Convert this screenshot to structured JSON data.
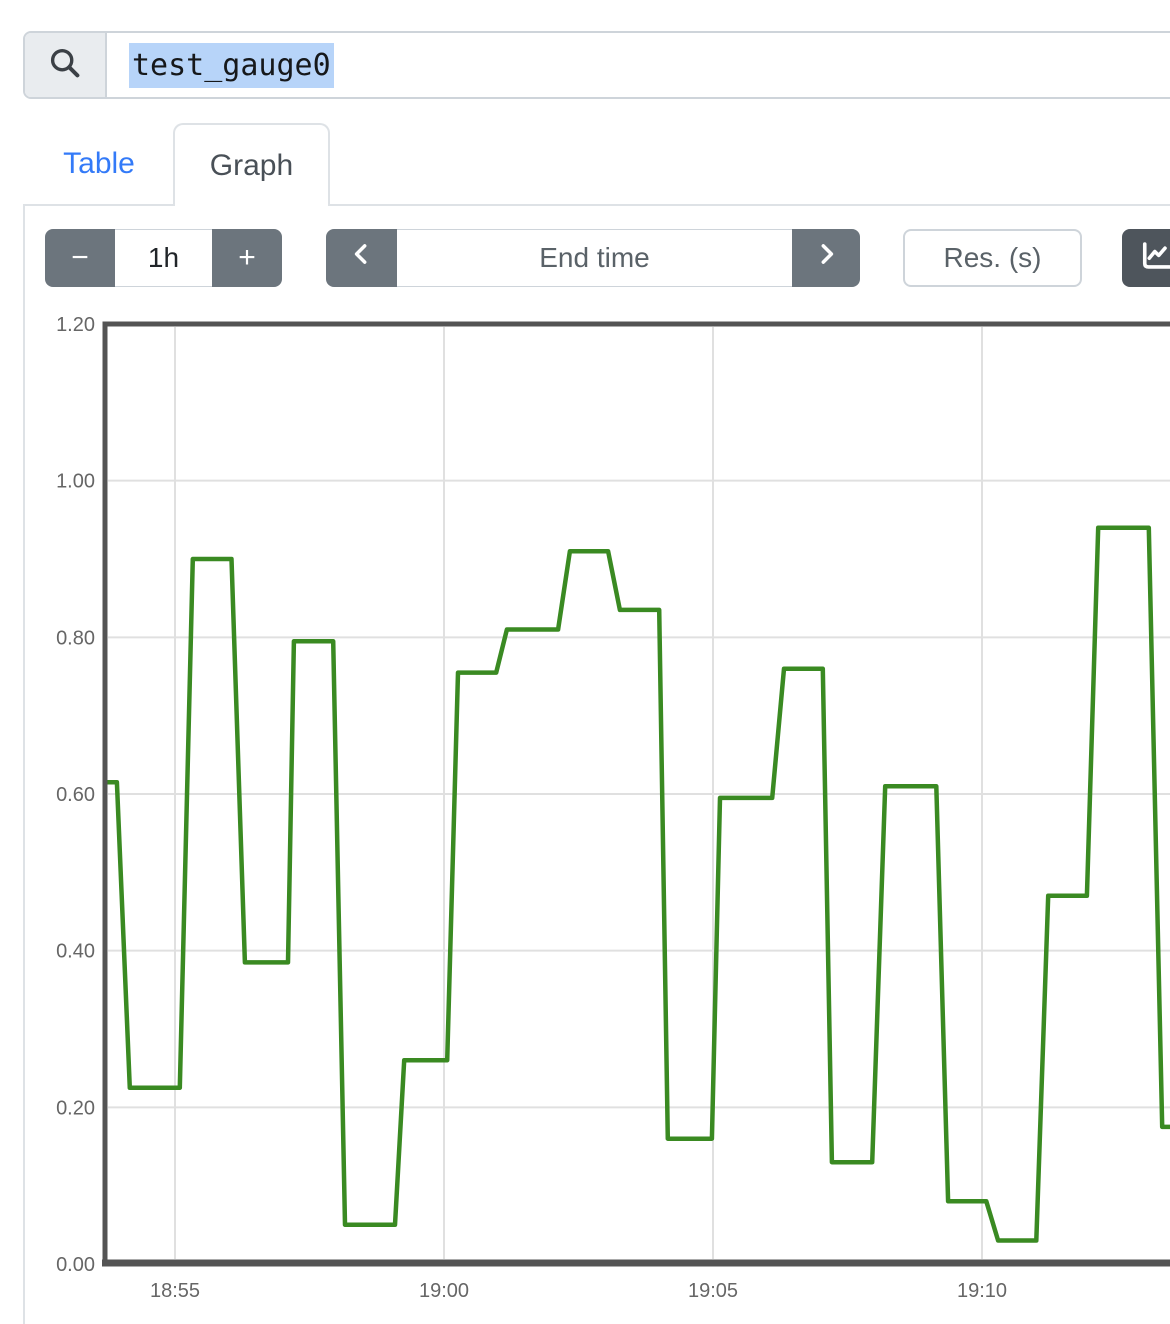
{
  "query": {
    "value": "test_gauge0"
  },
  "tabs": {
    "table": "Table",
    "graph": "Graph"
  },
  "toolbar": {
    "range_decrease": "−",
    "range_value": "1h",
    "range_increase": "+",
    "end_time_placeholder": "End time",
    "res_placeholder": "Res. (s)",
    "icons": {
      "search": "magnifier-icon",
      "back": "chevron-left-icon",
      "forward": "chevron-right-icon",
      "graph_toggle": "chart-line-icon"
    }
  },
  "colors": {
    "link_blue": "#337af8",
    "button_gray": "#6c757d",
    "dark_button_gray": "#4e555c",
    "input_border": "#ced4da",
    "tab_border": "#dee2e6",
    "selection_blue": "#b7d4f9",
    "axis_border": "#545454",
    "gridline": "#e0e0e0",
    "tick_text": "#666666",
    "series_green": "#3a8a22"
  },
  "chart_data": {
    "type": "line",
    "title": "",
    "xlabel": "",
    "ylabel": "",
    "ylim": [
      0.0,
      1.2
    ],
    "grid": true,
    "x_unit": "minutes after 18:53",
    "xlim": [
      0.7,
      20.6
    ],
    "xticks": [
      {
        "t": 2,
        "label": "18:55"
      },
      {
        "t": 7,
        "label": "19:00"
      },
      {
        "t": 12,
        "label": "19:05"
      },
      {
        "t": 17,
        "label": "19:10"
      }
    ],
    "yticks": [
      {
        "v": 0.0,
        "label": "0.00",
        "grid": false
      },
      {
        "v": 0.2,
        "label": "0.20",
        "grid": true
      },
      {
        "v": 0.4,
        "label": "0.40",
        "grid": true
      },
      {
        "v": 0.6,
        "label": "0.60",
        "grid": true
      },
      {
        "v": 0.8,
        "label": "0.80",
        "grid": true
      },
      {
        "v": 1.0,
        "label": "1.00",
        "grid": true
      },
      {
        "v": 1.2,
        "label": "1.20",
        "grid": false
      }
    ],
    "series": [
      {
        "name": "test_gauge0",
        "color": "#3a8a22",
        "points": [
          [
            0.7,
            0.615
          ],
          [
            0.92,
            0.615
          ],
          [
            1.16,
            0.225
          ],
          [
            2.09,
            0.225
          ],
          [
            2.33,
            0.9
          ],
          [
            3.05,
            0.9
          ],
          [
            3.3,
            0.385
          ],
          [
            4.1,
            0.385
          ],
          [
            4.21,
            0.795
          ],
          [
            4.94,
            0.795
          ],
          [
            5.16,
            0.05
          ],
          [
            6.09,
            0.05
          ],
          [
            6.26,
            0.26
          ],
          [
            7.06,
            0.26
          ],
          [
            7.26,
            0.755
          ],
          [
            7.97,
            0.755
          ],
          [
            8.17,
            0.81
          ],
          [
            9.12,
            0.81
          ],
          [
            9.34,
            0.91
          ],
          [
            10.05,
            0.91
          ],
          [
            10.27,
            0.835
          ],
          [
            11.0,
            0.835
          ],
          [
            11.16,
            0.16
          ],
          [
            11.98,
            0.16
          ],
          [
            12.13,
            0.595
          ],
          [
            13.1,
            0.595
          ],
          [
            13.32,
            0.76
          ],
          [
            14.04,
            0.76
          ],
          [
            14.21,
            0.13
          ],
          [
            14.96,
            0.13
          ],
          [
            15.2,
            0.61
          ],
          [
            16.15,
            0.61
          ],
          [
            16.37,
            0.08
          ],
          [
            17.08,
            0.08
          ],
          [
            17.3,
            0.03
          ],
          [
            18.01,
            0.03
          ],
          [
            18.23,
            0.47
          ],
          [
            18.95,
            0.47
          ],
          [
            19.16,
            0.94
          ],
          [
            20.1,
            0.94
          ],
          [
            20.35,
            0.175
          ],
          [
            20.6,
            0.175
          ]
        ]
      }
    ]
  }
}
